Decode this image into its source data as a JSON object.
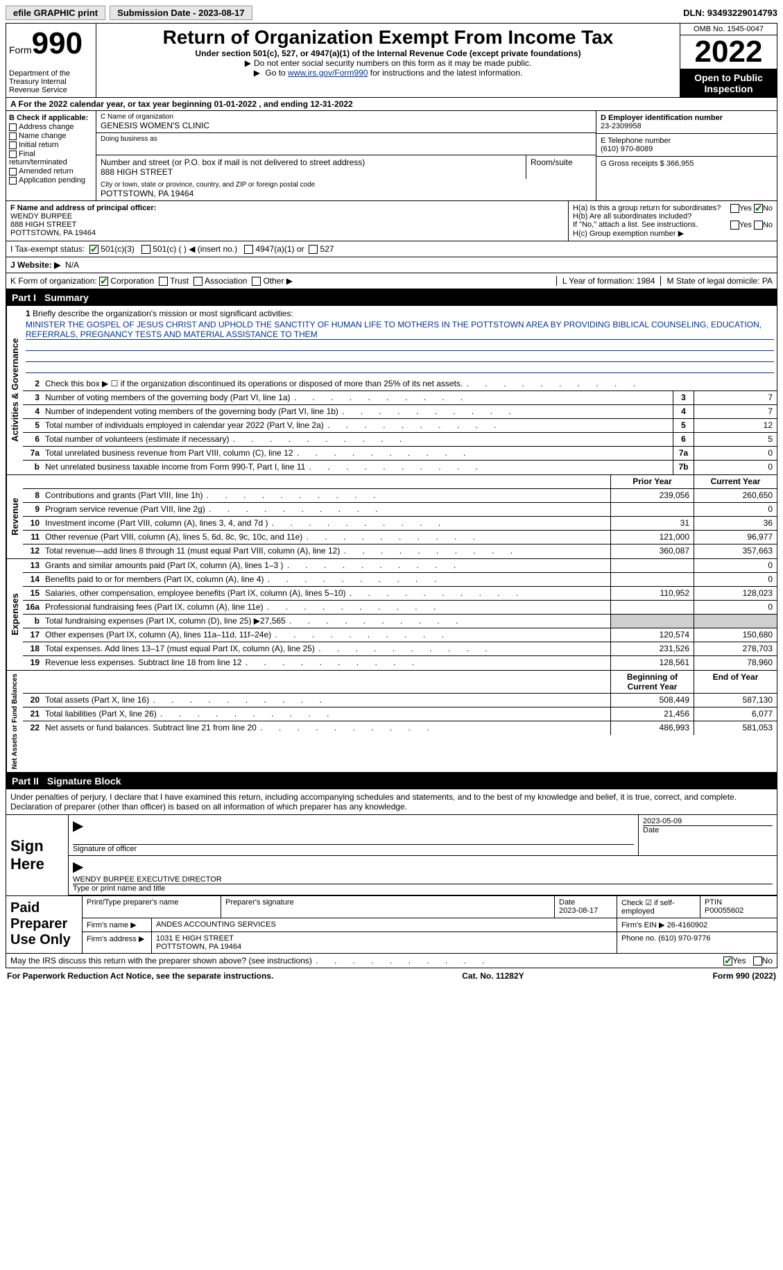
{
  "topbar": {
    "efile": "efile GRAPHIC print",
    "submission_label": "Submission Date - 2023-08-17",
    "dln": "DLN: 93493229014793"
  },
  "header": {
    "form_prefix": "Form",
    "form_number": "990",
    "dept": "Department of the Treasury\nInternal Revenue Service",
    "title": "Return of Organization Exempt From Income Tax",
    "subtitle": "Under section 501(c), 527, or 4947(a)(1) of the Internal Revenue Code (except private foundations)",
    "note1": "Do not enter social security numbers on this form as it may be made public.",
    "note2_pre": "Go to ",
    "note2_link": "www.irs.gov/Form990",
    "note2_post": " for instructions and the latest information.",
    "omb": "OMB No. 1545-0047",
    "year": "2022",
    "inspect": "Open to Public Inspection"
  },
  "rowA": "A For the 2022 calendar year, or tax year beginning 01-01-2022    , and ending 12-31-2022",
  "boxB": {
    "title": "B Check if applicable:",
    "items": [
      "Address change",
      "Name change",
      "Initial return",
      "Final return/terminated",
      "Amended return",
      "Application pending"
    ]
  },
  "boxC": {
    "name_label": "C Name of organization",
    "name": "GENESIS WOMEN'S CLINIC",
    "dba_label": "Doing business as",
    "street_label": "Number and street (or P.O. box if mail is not delivered to street address)",
    "room_label": "Room/suite",
    "street": "888 HIGH STREET",
    "city_label": "City or town, state or province, country, and ZIP or foreign postal code",
    "city": "POTTSTOWN, PA  19464"
  },
  "boxD": {
    "label": "D Employer identification number",
    "value": "23-2309958"
  },
  "boxE": {
    "label": "E Telephone number",
    "value": "(610) 970-8089"
  },
  "boxG": {
    "label": "G Gross receipts $ 366,955"
  },
  "boxF": {
    "label": "F Name and address of principal officer:",
    "name": "WENDY BURPEE",
    "addr1": "888 HIGH STREET",
    "addr2": "POTTSTOWN, PA  19464"
  },
  "boxH": {
    "a": "H(a)  Is this a group return for subordinates?",
    "b": "H(b)  Are all subordinates included?",
    "note": "If \"No,\" attach a list. See instructions.",
    "c": "H(c)  Group exemption number ▶",
    "yes": "Yes",
    "no": "No"
  },
  "taxexempt": {
    "label": "I  Tax-exempt status:",
    "c3": "501(c)(3)",
    "c": "501(c) (   ) ◀ (insert no.)",
    "a1": "4947(a)(1) or",
    "s527": "527"
  },
  "website": {
    "label": "J  Website: ▶",
    "value": "N/A"
  },
  "rowK": {
    "label": "K Form of organization:",
    "corp": "Corporation",
    "trust": "Trust",
    "assoc": "Association",
    "other": "Other ▶"
  },
  "rowL": "L Year of formation: 1984",
  "rowM": "M State of legal domicile: PA",
  "part1": {
    "label": "Part I",
    "title": "Summary"
  },
  "mission": {
    "num": "1",
    "label": "Briefly describe the organization's mission or most significant activities:",
    "text": "MINISTER THE GOSPEL OF JESUS CHRIST AND UPHOLD THE SANCTITY OF HUMAN LIFE TO MOTHERS IN THE POTTSTOWN AREA BY PROVIDING BIBLICAL COUNSELING, EDUCATION, REFERRALS, PREGNANCY TESTS AND MATERIAL ASSISTANCE TO THEM"
  },
  "section_ag": {
    "title": "Activities & Governance",
    "lines": [
      {
        "n": "2",
        "d": "Check this box ▶ ☐ if the organization discontinued its operations or disposed of more than 25% of its net assets.",
        "box": "",
        "v": ""
      },
      {
        "n": "3",
        "d": "Number of voting members of the governing body (Part VI, line 1a)",
        "box": "3",
        "v": "7"
      },
      {
        "n": "4",
        "d": "Number of independent voting members of the governing body (Part VI, line 1b)",
        "box": "4",
        "v": "7"
      },
      {
        "n": "5",
        "d": "Total number of individuals employed in calendar year 2022 (Part V, line 2a)",
        "box": "5",
        "v": "12"
      },
      {
        "n": "6",
        "d": "Total number of volunteers (estimate if necessary)",
        "box": "6",
        "v": "5"
      },
      {
        "n": "7a",
        "d": "Total unrelated business revenue from Part VIII, column (C), line 12",
        "box": "7a",
        "v": "0"
      },
      {
        "n": "b",
        "d": "Net unrelated business taxable income from Form 990-T, Part I, line 11",
        "box": "7b",
        "v": "0"
      }
    ]
  },
  "cols": {
    "prior": "Prior Year",
    "current": "Current Year",
    "boy": "Beginning of Current Year",
    "eoy": "End of Year"
  },
  "section_rev": {
    "title": "Revenue",
    "lines": [
      {
        "n": "8",
        "d": "Contributions and grants (Part VIII, line 1h)",
        "p": "239,056",
        "c": "260,650"
      },
      {
        "n": "9",
        "d": "Program service revenue (Part VIII, line 2g)",
        "p": "",
        "c": "0"
      },
      {
        "n": "10",
        "d": "Investment income (Part VIII, column (A), lines 3, 4, and 7d )",
        "p": "31",
        "c": "36"
      },
      {
        "n": "11",
        "d": "Other revenue (Part VIII, column (A), lines 5, 6d, 8c, 9c, 10c, and 11e)",
        "p": "121,000",
        "c": "96,977"
      },
      {
        "n": "12",
        "d": "Total revenue—add lines 8 through 11 (must equal Part VIII, column (A), line 12)",
        "p": "360,087",
        "c": "357,663"
      }
    ]
  },
  "section_exp": {
    "title": "Expenses",
    "lines": [
      {
        "n": "13",
        "d": "Grants and similar amounts paid (Part IX, column (A), lines 1–3 )",
        "p": "",
        "c": "0"
      },
      {
        "n": "14",
        "d": "Benefits paid to or for members (Part IX, column (A), line 4)",
        "p": "",
        "c": "0"
      },
      {
        "n": "15",
        "d": "Salaries, other compensation, employee benefits (Part IX, column (A), lines 5–10)",
        "p": "110,952",
        "c": "128,023"
      },
      {
        "n": "16a",
        "d": "Professional fundraising fees (Part IX, column (A), line 11e)",
        "p": "",
        "c": "0"
      },
      {
        "n": "b",
        "d": "Total fundraising expenses (Part IX, column (D), line 25) ▶27,565",
        "p": "shade",
        "c": "shade"
      },
      {
        "n": "17",
        "d": "Other expenses (Part IX, column (A), lines 11a–11d, 11f–24e)",
        "p": "120,574",
        "c": "150,680"
      },
      {
        "n": "18",
        "d": "Total expenses. Add lines 13–17 (must equal Part IX, column (A), line 25)",
        "p": "231,526",
        "c": "278,703"
      },
      {
        "n": "19",
        "d": "Revenue less expenses. Subtract line 18 from line 12",
        "p": "128,561",
        "c": "78,960"
      }
    ]
  },
  "section_net": {
    "title": "Net Assets or Fund Balances",
    "lines": [
      {
        "n": "20",
        "d": "Total assets (Part X, line 16)",
        "p": "508,449",
        "c": "587,130"
      },
      {
        "n": "21",
        "d": "Total liabilities (Part X, line 26)",
        "p": "21,456",
        "c": "6,077"
      },
      {
        "n": "22",
        "d": "Net assets or fund balances. Subtract line 21 from line 20",
        "p": "486,993",
        "c": "581,053"
      }
    ]
  },
  "part2": {
    "label": "Part II",
    "title": "Signature Block"
  },
  "sig": {
    "penalty": "Under penalties of perjury, I declare that I have examined this return, including accompanying schedules and statements, and to the best of my knowledge and belief, it is true, correct, and complete. Declaration of preparer (other than officer) is based on all information of which preparer has any knowledge.",
    "signhere": "Sign Here",
    "sig_officer": "Signature of officer",
    "date": "Date",
    "sigdate": "2023-05-09",
    "typed": "WENDY BURPEE  EXECUTIVE DIRECTOR",
    "typed_label": "Type or print name and title"
  },
  "paid": {
    "label": "Paid Preparer Use Only",
    "h_name": "Print/Type preparer's name",
    "h_sig": "Preparer's signature",
    "h_date": "Date",
    "date": "2023-08-17",
    "check": "Check ☑ if self-employed",
    "ptin_label": "PTIN",
    "ptin": "P00055602",
    "firm_label": "Firm's name  ▶",
    "firm": "ANDES ACCOUNTING SERVICES",
    "ein_label": "Firm's EIN ▶",
    "ein": "26-4160902",
    "addr_label": "Firm's address ▶",
    "addr": "1031 E HIGH STREET",
    "addr2": "POTTSTOWN, PA  19464",
    "phone_label": "Phone no.",
    "phone": "(610) 970-9776"
  },
  "discuss": {
    "text": "May the IRS discuss this return with the preparer shown above? (see instructions)",
    "yes": "Yes",
    "no": "No"
  },
  "footer": {
    "left": "For Paperwork Reduction Act Notice, see the separate instructions.",
    "mid": "Cat. No. 11282Y",
    "right": "Form 990 (2022)"
  },
  "colors": {
    "link": "#003399",
    "check": "#0a7a0a",
    "shade": "#d0d0d0"
  }
}
